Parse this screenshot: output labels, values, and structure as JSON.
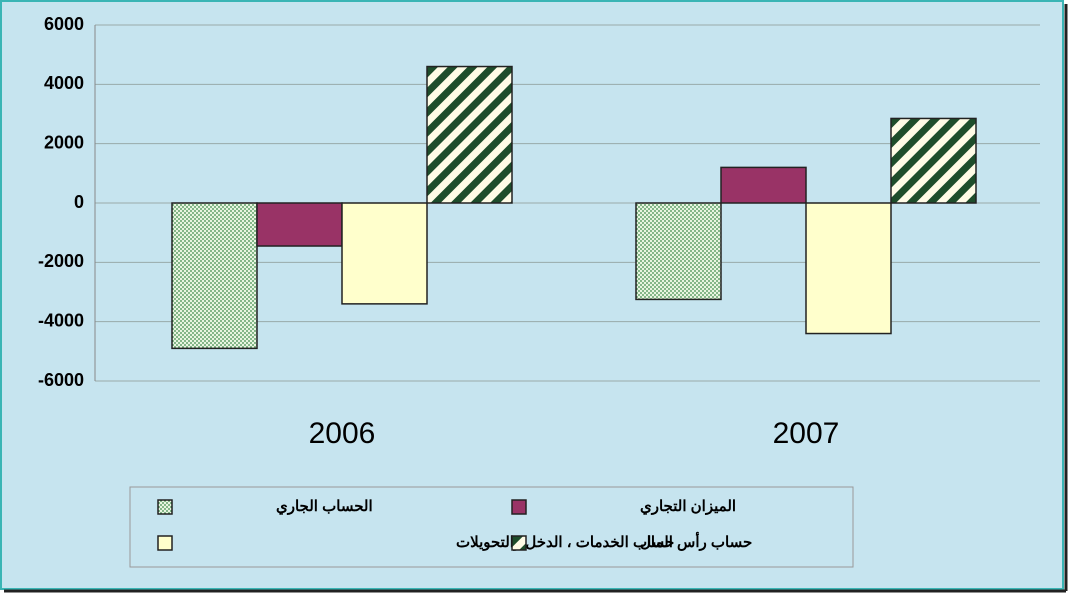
{
  "chart_data": {
    "type": "bar",
    "categories": [
      "2006",
      "2007"
    ],
    "series": [
      {
        "name": "الحساب الجاري",
        "color": "#b9dcb0",
        "pattern": "dots",
        "values": [
          -4900,
          -3250
        ]
      },
      {
        "name": "الميزان التجاري",
        "color": "#993366",
        "values": [
          -1450,
          1200
        ]
      },
      {
        "name": "حساب الخدمات ، الدخل والتحويلات",
        "color": "#ffffcc",
        "values": [
          -3400,
          -4400
        ]
      },
      {
        "name": "حساب رأس المال",
        "color": "#1e4d2b",
        "pattern": "hatch",
        "values": [
          4600,
          2850
        ]
      }
    ],
    "ylim": [
      -6000,
      6000
    ],
    "yticks": [
      -6000,
      -4000,
      -2000,
      0,
      2000,
      4000,
      6000
    ],
    "grid": true
  }
}
